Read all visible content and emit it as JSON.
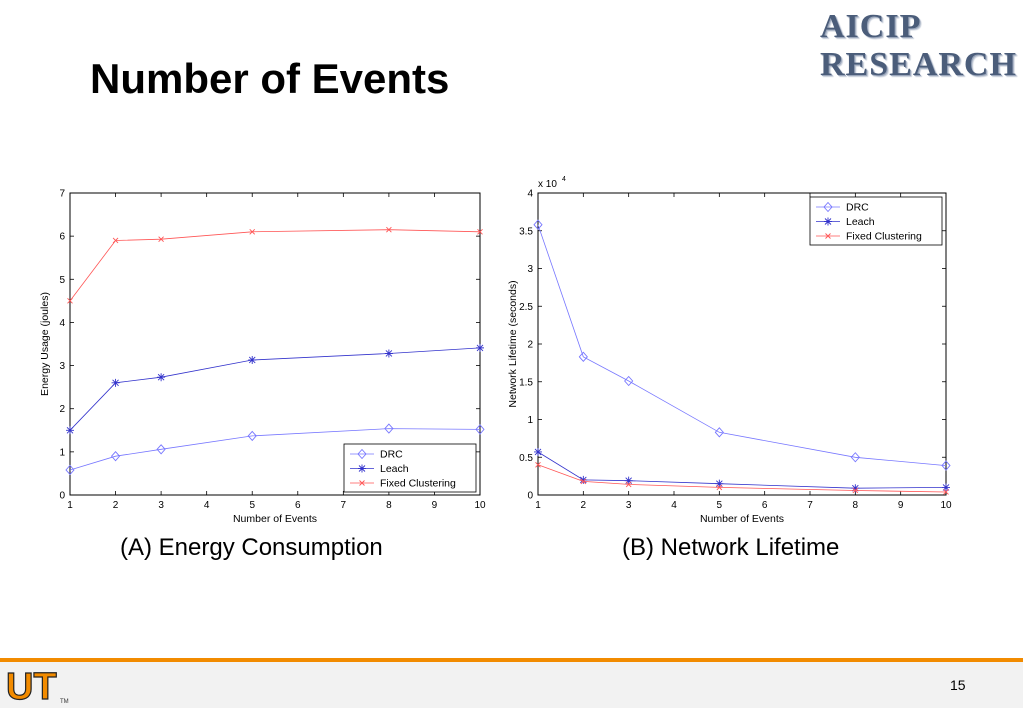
{
  "slide": {
    "title": "Number of Events",
    "page_number": "15",
    "logo_line1": "AICIP",
    "logo_line2": "RESEARCH",
    "ut_logo_text": "UT",
    "ut_logo_tm": "TM",
    "accent_color": "#f28b00"
  },
  "captions": {
    "a": "(A) Energy Consumption",
    "b": "(B) Network Lifetime"
  },
  "chart_data": [
    {
      "type": "line",
      "title": "",
      "xlabel": "Number of Events",
      "ylabel": "Energy Usage (joules)",
      "xlim": [
        1,
        10
      ],
      "ylim": [
        0,
        7
      ],
      "xticks": [
        "1",
        "2",
        "3",
        "4",
        "5",
        "6",
        "7",
        "8",
        "9",
        "10"
      ],
      "yticks": [
        "0",
        "1",
        "2",
        "3",
        "4",
        "5",
        "6",
        "7"
      ],
      "y_multiplier_label": "",
      "grid": false,
      "legend_position": "bottom-right",
      "series": [
        {
          "name": "DRC",
          "color": "#7777ff",
          "marker": "diamond",
          "x": [
            1,
            2,
            3,
            5,
            8,
            10
          ],
          "y": [
            0.58,
            0.9,
            1.06,
            1.37,
            1.54,
            1.52
          ]
        },
        {
          "name": "Leach",
          "color": "#3333cc",
          "marker": "star",
          "x": [
            1,
            2,
            3,
            5,
            8,
            10
          ],
          "y": [
            1.5,
            2.6,
            2.73,
            3.13,
            3.28,
            3.41
          ]
        },
        {
          "name": "Fixed Clustering",
          "color": "#ff5555",
          "marker": "x",
          "x": [
            1,
            2,
            3,
            5,
            8,
            10
          ],
          "y": [
            4.5,
            5.9,
            5.93,
            6.1,
            6.15,
            6.1
          ]
        }
      ]
    },
    {
      "type": "line",
      "title": "",
      "xlabel": "Number of Events",
      "ylabel": "Network Lifetime (seconds)",
      "xlim": [
        1,
        10
      ],
      "ylim": [
        0,
        4
      ],
      "xticks": [
        "1",
        "2",
        "3",
        "4",
        "5",
        "6",
        "7",
        "8",
        "9",
        "10"
      ],
      "yticks": [
        "0",
        "0.5",
        "1",
        "1.5",
        "2",
        "2.5",
        "3",
        "3.5",
        "4"
      ],
      "y_multiplier_label": "x 10",
      "y_multiplier_exponent": "4",
      "grid": false,
      "legend_position": "top-right",
      "series": [
        {
          "name": "DRC",
          "color": "#7777ff",
          "marker": "diamond",
          "x": [
            1,
            2,
            3,
            5,
            8,
            10
          ],
          "y": [
            3.58,
            1.83,
            1.51,
            0.83,
            0.5,
            0.39
          ]
        },
        {
          "name": "Leach",
          "color": "#3333cc",
          "marker": "star",
          "x": [
            1,
            2,
            3,
            5,
            8,
            10
          ],
          "y": [
            0.57,
            0.2,
            0.19,
            0.15,
            0.09,
            0.1
          ]
        },
        {
          "name": "Fixed Clustering",
          "color": "#ff5555",
          "marker": "x",
          "x": [
            1,
            2,
            3,
            5,
            8,
            10
          ],
          "y": [
            0.4,
            0.18,
            0.14,
            0.1,
            0.06,
            0.04
          ]
        }
      ]
    }
  ]
}
